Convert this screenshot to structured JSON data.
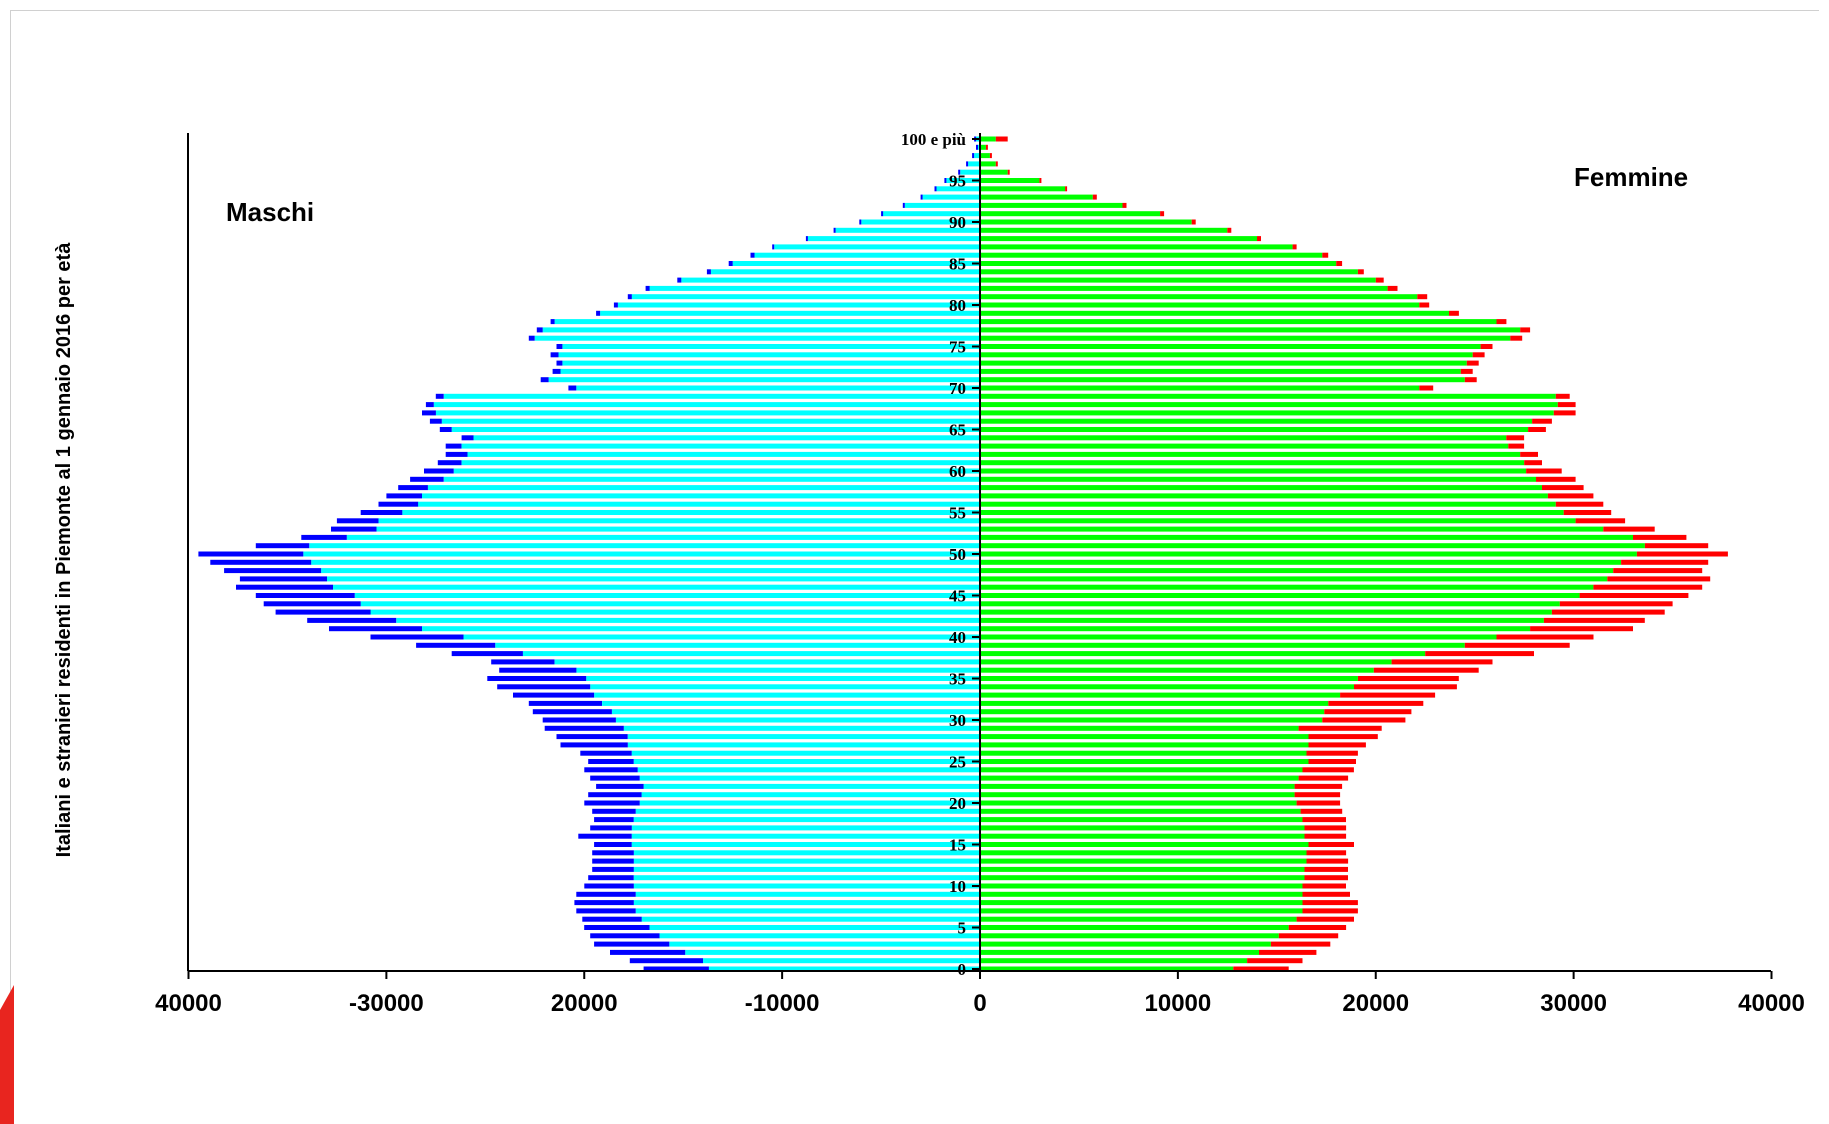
{
  "colors": {
    "male_italian": "#00ffff",
    "male_foreign": "#0000ff",
    "female_italian": "#00ff00",
    "female_foreign": "#ff0000",
    "axis": "#000000",
    "corner_accent": "#e8251f"
  },
  "chart_data": {
    "type": "bar",
    "orientation": "horizontal",
    "title": "",
    "ylabel": "Italiani e stranieri residenti in Piemonte al 1 gennaio 2016  per età",
    "xlabel": "",
    "xlim": [
      -40000,
      40000
    ],
    "ylim": [
      0,
      100
    ],
    "x_ticks": [
      {
        "value": -40000,
        "label": "40000"
      },
      {
        "value": -30000,
        "label": "-30000"
      },
      {
        "value": -20000,
        "label": "20000"
      },
      {
        "value": -10000,
        "label": "-10000"
      },
      {
        "value": 0,
        "label": "0"
      },
      {
        "value": 10000,
        "label": "10000"
      },
      {
        "value": 20000,
        "label": "20000"
      },
      {
        "value": 30000,
        "label": "30000"
      },
      {
        "value": 40000,
        "label": "40000"
      }
    ],
    "y_ticks": [
      {
        "age": 0,
        "label": "0"
      },
      {
        "age": 5,
        "label": "5"
      },
      {
        "age": 10,
        "label": "10"
      },
      {
        "age": 15,
        "label": "15"
      },
      {
        "age": 20,
        "label": "20"
      },
      {
        "age": 25,
        "label": "25"
      },
      {
        "age": 30,
        "label": "30"
      },
      {
        "age": 35,
        "label": "35"
      },
      {
        "age": 40,
        "label": "40"
      },
      {
        "age": 45,
        "label": "45"
      },
      {
        "age": 50,
        "label": "50"
      },
      {
        "age": 55,
        "label": "55"
      },
      {
        "age": 60,
        "label": "60"
      },
      {
        "age": 65,
        "label": "65"
      },
      {
        "age": 70,
        "label": "70"
      },
      {
        "age": 75,
        "label": "75"
      },
      {
        "age": 80,
        "label": "80"
      },
      {
        "age": 85,
        "label": "85"
      },
      {
        "age": 90,
        "label": "90"
      },
      {
        "age": 95,
        "label": "95"
      },
      {
        "age": 100,
        "label": "100 e più"
      }
    ],
    "male_label": "Maschi",
    "female_label": "Femmine",
    "ages": [
      0,
      1,
      2,
      3,
      4,
      5,
      6,
      7,
      8,
      9,
      10,
      11,
      12,
      13,
      14,
      15,
      16,
      17,
      18,
      19,
      20,
      21,
      22,
      23,
      24,
      25,
      26,
      27,
      28,
      29,
      30,
      31,
      32,
      33,
      34,
      35,
      36,
      37,
      38,
      39,
      40,
      41,
      42,
      43,
      44,
      45,
      46,
      47,
      48,
      49,
      50,
      51,
      52,
      53,
      54,
      55,
      56,
      57,
      58,
      59,
      60,
      61,
      62,
      63,
      64,
      65,
      66,
      67,
      68,
      69,
      70,
      71,
      72,
      73,
      74,
      75,
      76,
      77,
      78,
      79,
      80,
      81,
      82,
      83,
      84,
      85,
      86,
      87,
      88,
      89,
      90,
      91,
      92,
      93,
      94,
      95,
      96,
      97,
      98,
      99,
      100
    ],
    "series": [
      {
        "key": "male_italian",
        "values": [
          13700,
          14000,
          14900,
          15700,
          16200,
          16700,
          17100,
          17400,
          17500,
          17400,
          17500,
          17500,
          17500,
          17500,
          17500,
          17600,
          17600,
          17600,
          17500,
          17400,
          17200,
          17100,
          17000,
          17200,
          17300,
          17500,
          17600,
          17800,
          17800,
          18000,
          18400,
          18600,
          19100,
          19500,
          19700,
          19900,
          20400,
          21500,
          23100,
          24500,
          26100,
          28200,
          29500,
          30800,
          31300,
          31600,
          32700,
          33000,
          33300,
          33800,
          34200,
          33900,
          32000,
          30500,
          30400,
          29200,
          28400,
          28200,
          27900,
          27100,
          26600,
          26200,
          25900,
          26200,
          25600,
          26700,
          27200,
          27500,
          27600,
          27100,
          20400,
          21800,
          21200,
          21100,
          21300,
          21100,
          22500,
          22100,
          21500,
          19200,
          18300,
          17600,
          16700,
          15100,
          13600,
          12500,
          11400,
          10400,
          8700,
          7300,
          6000,
          4900,
          3800,
          2900,
          2200,
          1700,
          1000,
          600,
          300,
          100,
          200
        ]
      },
      {
        "key": "male_foreign",
        "values": [
          3300,
          3700,
          3800,
          3800,
          3500,
          3300,
          3000,
          3000,
          3000,
          3000,
          2500,
          2300,
          2100,
          2100,
          2100,
          1900,
          2700,
          2100,
          2000,
          2200,
          2800,
          2700,
          2400,
          2500,
          2700,
          2300,
          2600,
          3400,
          3600,
          4000,
          3700,
          4000,
          3700,
          4100,
          4700,
          5000,
          3900,
          3200,
          3600,
          4000,
          4700,
          4700,
          4500,
          4800,
          4900,
          5000,
          4900,
          4400,
          4900,
          5100,
          5300,
          2700,
          2300,
          2300,
          2100,
          2100,
          2000,
          1800,
          1500,
          1700,
          1500,
          1200,
          1100,
          800,
          600,
          600,
          600,
          700,
          400,
          400,
          400,
          400,
          400,
          300,
          400,
          300,
          300,
          300,
          200,
          200,
          200,
          200,
          200,
          200,
          200,
          200,
          200,
          100,
          100,
          100,
          100,
          100,
          100,
          100,
          100,
          100,
          100,
          100,
          100,
          100,
          100
        ]
      },
      {
        "key": "female_italian",
        "values": [
          12800,
          13500,
          14100,
          14700,
          15100,
          15600,
          16000,
          16300,
          16300,
          16300,
          16300,
          16400,
          16400,
          16500,
          16500,
          16600,
          16400,
          16400,
          16300,
          16200,
          16000,
          15900,
          15900,
          16100,
          16300,
          16600,
          16500,
          16600,
          16600,
          16100,
          17300,
          17400,
          17600,
          18200,
          18900,
          19100,
          19900,
          20800,
          22500,
          24500,
          26100,
          27800,
          28500,
          28900,
          29300,
          30300,
          31000,
          31700,
          32000,
          32400,
          33200,
          33600,
          33000,
          31500,
          30100,
          29500,
          29100,
          28700,
          28400,
          28100,
          27600,
          27500,
          27300,
          26700,
          26600,
          27700,
          27900,
          29000,
          29200,
          29100,
          22200,
          24500,
          24300,
          24600,
          24900,
          25300,
          26800,
          27300,
          26100,
          23700,
          22200,
          22100,
          20600,
          20000,
          19100,
          18000,
          17300,
          15800,
          14000,
          12500,
          10700,
          9100,
          7200,
          5700,
          4300,
          3000,
          1400,
          800,
          500,
          300,
          800
        ]
      },
      {
        "key": "female_foreign",
        "values": [
          2800,
          2800,
          2900,
          3000,
          3000,
          2900,
          2900,
          2800,
          2800,
          2400,
          2200,
          2200,
          2200,
          2100,
          2000,
          2300,
          2100,
          2100,
          2200,
          2100,
          2200,
          2300,
          2400,
          2500,
          2600,
          2400,
          2600,
          2900,
          3500,
          4200,
          4200,
          4400,
          4800,
          4800,
          5200,
          5100,
          5300,
          5100,
          5500,
          5300,
          4900,
          5200,
          5100,
          5700,
          5700,
          5500,
          5500,
          5200,
          4500,
          4400,
          4600,
          3200,
          2700,
          2600,
          2500,
          2400,
          2400,
          2300,
          2100,
          2000,
          1800,
          900,
          900,
          800,
          900,
          900,
          1000,
          1100,
          900,
          700,
          700,
          600,
          600,
          600,
          600,
          600,
          600,
          500,
          500,
          500,
          500,
          500,
          500,
          400,
          300,
          300,
          300,
          200,
          200,
          200,
          200,
          200,
          200,
          200,
          100,
          100,
          100,
          100,
          100,
          100,
          600
        ]
      }
    ]
  }
}
